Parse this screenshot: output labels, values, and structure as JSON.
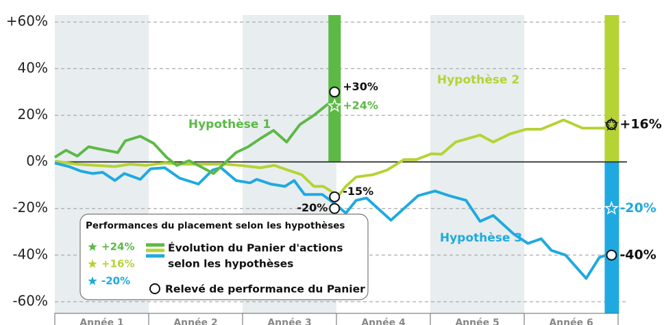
{
  "chart_data": {
    "type": "line",
    "categories": [
      "Année 1",
      "Année 2",
      "Année 3",
      "Année 4",
      "Année 5",
      "Année 6"
    ],
    "xlim": [
      0,
      6
    ],
    "ylim": [
      -65,
      63
    ],
    "yticks": [
      {
        "value": 60,
        "label": "+60%"
      },
      {
        "value": 40,
        "label": "40%"
      },
      {
        "value": 20,
        "label": "20%"
      },
      {
        "value": 0,
        "label": "0%"
      },
      {
        "value": -20,
        "label": "-20%"
      },
      {
        "value": -40,
        "label": "-40%"
      },
      {
        "value": -60,
        "label": "-60%"
      }
    ],
    "grid": true,
    "series": [
      {
        "name": "Hypothèse 1",
        "color": "#5cb946",
        "x": [
          0,
          0.12,
          0.24,
          0.36,
          0.48,
          0.61,
          0.67,
          0.75,
          0.91,
          1.05,
          1.19,
          1.3,
          1.43,
          1.55,
          1.69,
          1.81,
          1.93,
          2.06,
          2.19,
          2.33,
          2.47,
          2.61,
          2.76,
          2.9,
          2.95
        ],
        "values": [
          2,
          5,
          2.5,
          6.5,
          5.5,
          4.5,
          4,
          9,
          11,
          8,
          2,
          -1.5,
          0.5,
          -2,
          -5,
          -0.5,
          4,
          6.5,
          10,
          13.5,
          8.5,
          16,
          20,
          24.5,
          26
        ]
      },
      {
        "name": "Hypothèse 2",
        "color": "#b5d334",
        "x": [
          0,
          0.24,
          0.44,
          0.64,
          0.8,
          0.97,
          1.17,
          1.39,
          1.61,
          1.82,
          1.97,
          2.19,
          2.34,
          2.48,
          2.63,
          2.76,
          2.86,
          2.96,
          3.01,
          3.1,
          3.21,
          3.39,
          3.54,
          3.72,
          3.85,
          4.01,
          4.12,
          4.27,
          4.53,
          4.67,
          4.85,
          5.02,
          5.18,
          5.42,
          5.62,
          5.82,
          5.93
        ],
        "values": [
          0.3,
          -1,
          -1.5,
          -2,
          -1,
          -1.5,
          -0.5,
          -1,
          -1,
          -1,
          -1.5,
          -2.5,
          -1.5,
          -3.5,
          -5.5,
          -10.5,
          -10.5,
          -13,
          -15,
          -10.5,
          -6.5,
          -5.5,
          -3.5,
          1,
          1,
          3.5,
          3.3,
          8.5,
          11.5,
          8.5,
          12,
          14,
          14,
          18,
          14.5,
          14.5,
          14.5
        ]
      },
      {
        "name": "Hypothèse 3",
        "color": "#1fa9e0",
        "x": [
          0,
          0.15,
          0.28,
          0.4,
          0.51,
          0.64,
          0.74,
          0.91,
          1.02,
          1.17,
          1.33,
          1.53,
          1.68,
          1.77,
          1.93,
          2.08,
          2.15,
          2.3,
          2.45,
          2.55,
          2.66,
          2.85,
          3,
          3.1,
          3.21,
          3.32,
          3.58,
          3.87,
          4.05,
          4.2,
          4.38,
          4.53,
          4.67,
          4.89,
          5.04,
          5.18,
          5.29,
          5.44,
          5.66,
          5.8,
          5.91
        ],
        "values": [
          -0.5,
          -2,
          -4,
          -5,
          -4.5,
          -8,
          -5,
          -7.5,
          -3,
          -2.5,
          -7,
          -9.5,
          -3.5,
          -2.5,
          -8,
          -9,
          -7.5,
          -9.5,
          -10.5,
          -8,
          -14,
          -14,
          -18.5,
          -22,
          -16.5,
          -15.5,
          -25,
          -14.5,
          -12.5,
          -14.5,
          -16.5,
          -25.5,
          -23,
          -31,
          -35,
          -33,
          -38,
          -40,
          -50,
          -41,
          -39.5
        ]
      }
    ],
    "markers": [
      {
        "shape": "circle",
        "x": 2.98,
        "value": 30,
        "label": "+30%"
      },
      {
        "shape": "star",
        "series": 0,
        "x": 2.98,
        "value": 24,
        "label": "+24%"
      },
      {
        "shape": "circle",
        "x": 2.98,
        "value": -15,
        "label": "-15%"
      },
      {
        "shape": "circle",
        "x": 2.98,
        "value": -20,
        "label": "-20%"
      },
      {
        "shape": "star",
        "series": 1,
        "x": 5.93,
        "value": 16
      },
      {
        "shape": "circle",
        "x": 5.93,
        "value": 16,
        "label": "+16%"
      },
      {
        "shape": "star",
        "series": 2,
        "x": 5.93,
        "value": -20,
        "label": "-20%"
      },
      {
        "shape": "circle",
        "x": 5.93,
        "value": -40,
        "label": "-40%"
      }
    ],
    "legend": {
      "title": "Performances du placement selon les hypothèses",
      "star_labels": [
        "+24%",
        "+16%",
        "-20%"
      ],
      "line_label": [
        "Évolution du Panier d'actions",
        "selon les hypothèses"
      ],
      "circle_label": "Relevé de performance du Panier"
    }
  }
}
